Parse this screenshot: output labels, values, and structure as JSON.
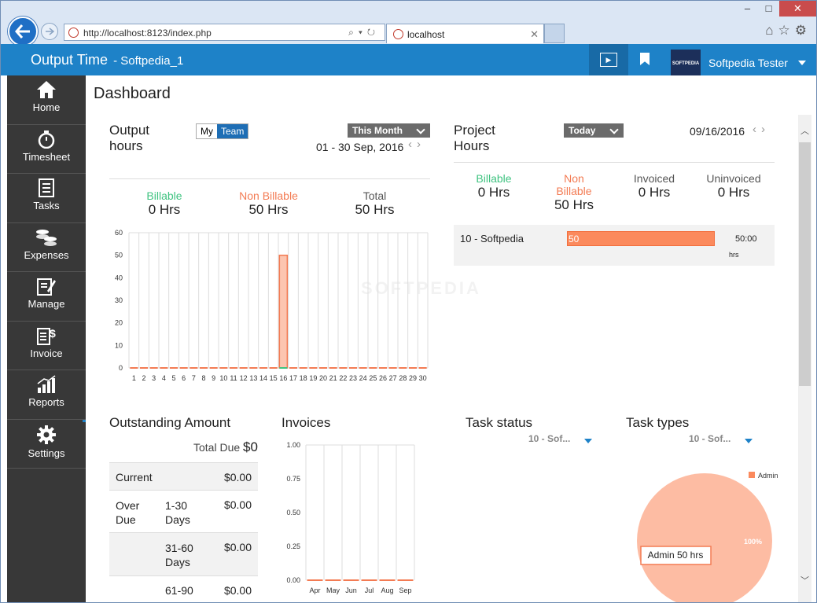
{
  "browser": {
    "url": "http://localhost:8123/index.php",
    "tab_title": "localhost"
  },
  "app": {
    "title": "Output Time",
    "subtitle": "- Softpedia_1",
    "user_name": "Softpedia Tester",
    "avatar_text": "SOFTPEDIA"
  },
  "sidebar": {
    "items": [
      {
        "label": "Home",
        "icon": "home-icon"
      },
      {
        "label": "Timesheet",
        "icon": "stopwatch-icon"
      },
      {
        "label": "Tasks",
        "icon": "tasks-icon"
      },
      {
        "label": "Expenses",
        "icon": "coins-icon"
      },
      {
        "label": "Manage",
        "icon": "manage-icon"
      },
      {
        "label": "Invoice",
        "icon": "invoice-icon"
      },
      {
        "label": "Reports",
        "icon": "reports-icon"
      },
      {
        "label": "Settings",
        "icon": "gear-icon"
      }
    ]
  },
  "dashboard": {
    "title": "Dashboard",
    "output": {
      "title_line1": "Output",
      "title_line2": "hours",
      "toggle_my": "My",
      "toggle_team": "Team",
      "period": "This Month",
      "range": "01 - 30 Sep, 2016",
      "billable_label": "Billable",
      "billable_value": "0 Hrs",
      "nonbillable_label": "Non Billable",
      "nonbillable_value": "50 Hrs",
      "total_label": "Total",
      "total_value": "50 Hrs"
    },
    "project": {
      "title_line1": "Project",
      "title_line2": "Hours",
      "period": "Today",
      "date": "09/16/2016",
      "billable_label": "Billable",
      "billable_value": "0 Hrs",
      "non_label_1": "Non",
      "non_label_2": "Billable",
      "non_value": "50 Hrs",
      "invoiced_label": "Invoiced",
      "invoiced_value": "0 Hrs",
      "uninvoiced_label": "Uninvoiced",
      "uninvoiced_value": "0 Hrs",
      "row_name": "10 - Softpedia",
      "row_bar_label": "50",
      "row_time": "50:00",
      "row_unit": "hrs",
      "row_fill_fraction": 1.0
    },
    "outstanding": {
      "title": "Outstanding Amount",
      "total_due_label": "Total Due",
      "total_due_value": "$0",
      "rows": [
        {
          "c1": "Current",
          "c2": "",
          "c3": "$0.00"
        },
        {
          "c1": "Over\nDue",
          "c2": "1-30\nDays",
          "c3": "$0.00"
        },
        {
          "c1": "",
          "c2": "31-60\nDays",
          "c3": "$0.00"
        },
        {
          "c1": "",
          "c2": "61-90",
          "c3": "$0.00"
        }
      ]
    },
    "invoices": {
      "title": "Invoices"
    },
    "task_status": {
      "title": "Task status",
      "selected": "10 - Sof..."
    },
    "task_types": {
      "title": "Task types",
      "selected": "10 - Sof..."
    },
    "watermark": "SOFTPEDIA"
  },
  "colors": {
    "accent": "#1e82c8",
    "sidebar": "#383838",
    "billable": "#3fc380",
    "nonbillable": "#f37b53"
  },
  "chart_data": [
    {
      "type": "bar",
      "categories": [
        "1",
        "2",
        "3",
        "4",
        "5",
        "6",
        "7",
        "8",
        "9",
        "10",
        "11",
        "12",
        "13",
        "14",
        "15",
        "16",
        "17",
        "18",
        "19",
        "20",
        "21",
        "22",
        "23",
        "24",
        "25",
        "26",
        "27",
        "28",
        "29",
        "30"
      ],
      "series": [
        {
          "name": "Billable",
          "values": [
            0,
            0,
            0,
            0,
            0,
            0,
            0,
            0,
            0,
            0,
            0,
            0,
            0,
            0,
            0,
            0,
            0,
            0,
            0,
            0,
            0,
            0,
            0,
            0,
            0,
            0,
            0,
            0,
            0,
            0
          ]
        },
        {
          "name": "Non Billable",
          "values": [
            0,
            0,
            0,
            0,
            0,
            0,
            0,
            0,
            0,
            0,
            0,
            0,
            0,
            0,
            0,
            50,
            0,
            0,
            0,
            0,
            0,
            0,
            0,
            0,
            0,
            0,
            0,
            0,
            0,
            0
          ]
        }
      ],
      "yticks": [
        0,
        10,
        20,
        30,
        40,
        50,
        60
      ],
      "ylim": [
        0,
        60
      ],
      "grid": true
    },
    {
      "type": "line",
      "categories": [
        "Apr",
        "May",
        "Jun",
        "Jul",
        "Aug",
        "Sep"
      ],
      "values": [
        0,
        0,
        0,
        0,
        0,
        0
      ],
      "yticks": [
        "0.00",
        "0.25",
        "0.50",
        "0.75",
        "1.00"
      ],
      "ylim": [
        0,
        1
      ],
      "grid": true
    },
    {
      "type": "pie",
      "labels": [
        "Admin"
      ],
      "values": [
        50
      ],
      "slice_label": "100%",
      "tooltip": "Admin 50 hrs",
      "legend": "top-right"
    }
  ]
}
